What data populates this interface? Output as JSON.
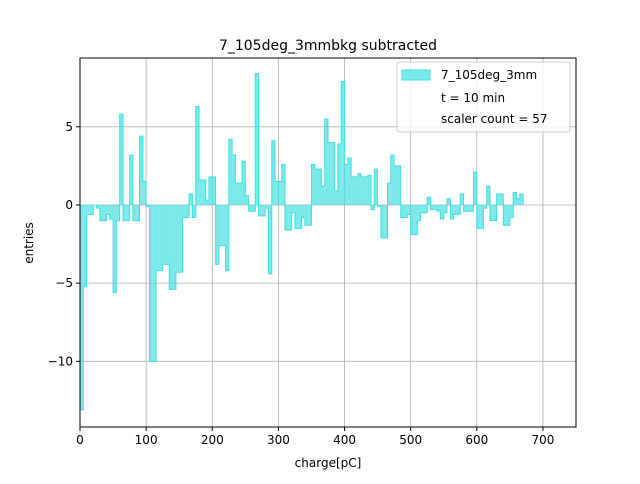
{
  "chart_data": {
    "type": "histogram",
    "title": "7_105deg_3mmbkg subtracted",
    "xlabel": "charge[pC]",
    "ylabel": "entries",
    "xlim": [
      0,
      750
    ],
    "ylim": [
      -14.2,
      9.4
    ],
    "xticks": [
      0,
      100,
      200,
      300,
      400,
      500,
      600,
      700
    ],
    "yticks": [
      -10,
      -5,
      0,
      5
    ],
    "grid": true,
    "legend_position": "top-right",
    "legend": {
      "series_label": "7_105deg_3mm",
      "extra_lines": [
        "t = 10 min",
        "scaler count = 57"
      ]
    },
    "bin_width": 5,
    "series": [
      {
        "name": "7_105deg_3mm",
        "color": "#40e0e0",
        "fill_opacity": 0.7,
        "bin_start": 0,
        "values": [
          -13.1,
          -5.2,
          -0.6,
          -0.6,
          0.0,
          -0.2,
          -1.0,
          -1.0,
          -0.6,
          -0.9,
          -5.6,
          -1.0,
          5.8,
          -1.0,
          -1.0,
          3.2,
          -1.0,
          -1.0,
          4.4,
          1.5,
          -0.1,
          -10.0,
          -10.0,
          -4.2,
          -4.2,
          -3.8,
          -3.8,
          -5.4,
          -5.4,
          -4.3,
          -4.3,
          -0.8,
          -0.8,
          0.7,
          -0.8,
          6.3,
          1.6,
          1.6,
          0.3,
          1.8,
          1.8,
          -3.8,
          -2.6,
          -2.6,
          -4.2,
          4.2,
          3.2,
          1.4,
          1.4,
          2.8,
          0.6,
          -0.4,
          -0.4,
          8.4,
          -0.7,
          -0.7,
          -0.2,
          -4.4,
          4.1,
          1.5,
          1.5,
          2.6,
          -1.6,
          -1.6,
          -0.5,
          -1.5,
          -1.5,
          -0.8,
          -1.3,
          -1.3,
          2.6,
          2.3,
          2.3,
          1.2,
          5.5,
          4.0,
          4.0,
          0.9,
          3.9,
          7.9,
          2.6,
          3.0,
          1.8,
          1.8,
          2.0,
          1.8,
          1.8,
          1.9,
          -0.3,
          2.3,
          -0.1,
          -2.1,
          -2.1,
          1.4,
          3.2,
          2.5,
          2.5,
          -0.8,
          -0.8,
          -0.6,
          -1.9,
          -1.9,
          -1.0,
          -0.5,
          -0.5,
          0.5,
          -0.3,
          -0.3,
          -0.4,
          -0.9,
          -0.5,
          0.4,
          -0.9,
          -0.6,
          -0.6,
          0.7,
          -0.4,
          -0.4,
          -0.4,
          2.1,
          -1.5,
          -1.5,
          -0.2,
          1.2,
          -1.0,
          -1.0,
          0.7,
          0.7,
          -1.3,
          -1.3,
          -0.8,
          0.8,
          0.4,
          0.7
        ]
      }
    ]
  }
}
